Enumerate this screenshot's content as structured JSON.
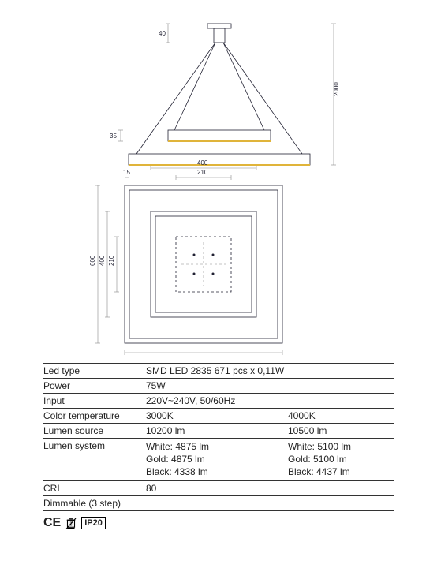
{
  "diagram": {
    "type": "technical-drawing",
    "stroke_color": "#223344",
    "accent_color": "#e0b43a",
    "light_stroke": "#888888",
    "background": "#ffffff",
    "side_view": {
      "dims": {
        "mount_h": "40",
        "ring_h": "35",
        "total_h": "2000"
      }
    },
    "top_view": {
      "dims": {
        "outer": "600",
        "mid": "400",
        "inner": "210",
        "edge": "15"
      }
    }
  },
  "specs": {
    "rows": [
      {
        "label": "Led type",
        "c1": "SMD LED 2835 671 pcs x 0,11W",
        "c2": ""
      },
      {
        "label": "Power",
        "c1": "75W",
        "c2": ""
      },
      {
        "label": "Input",
        "c1": "220V~240V, 50/60Hz",
        "c2": ""
      },
      {
        "label": "Color temperature",
        "c1": "3000K",
        "c2": "4000K"
      },
      {
        "label": "Lumen source",
        "c1": "10200 lm",
        "c2": "10500 lm"
      },
      {
        "label": "Lumen system",
        "multiline": true,
        "c1": [
          "White: 4875 lm",
          "Gold: 4875 lm",
          "Black: 4338 lm"
        ],
        "c2": [
          "White: 5100 lm",
          "Gold: 5100 lm",
          "Black: 4437 lm"
        ]
      },
      {
        "label": "CRI",
        "c1": "80",
        "c2": ""
      },
      {
        "label": "Dimmable (3 step)",
        "c1": "",
        "c2": ""
      }
    ],
    "label_fontsize": 12,
    "border_color": "#333333"
  },
  "badges": {
    "ce": "CE",
    "ip": "IP20"
  }
}
